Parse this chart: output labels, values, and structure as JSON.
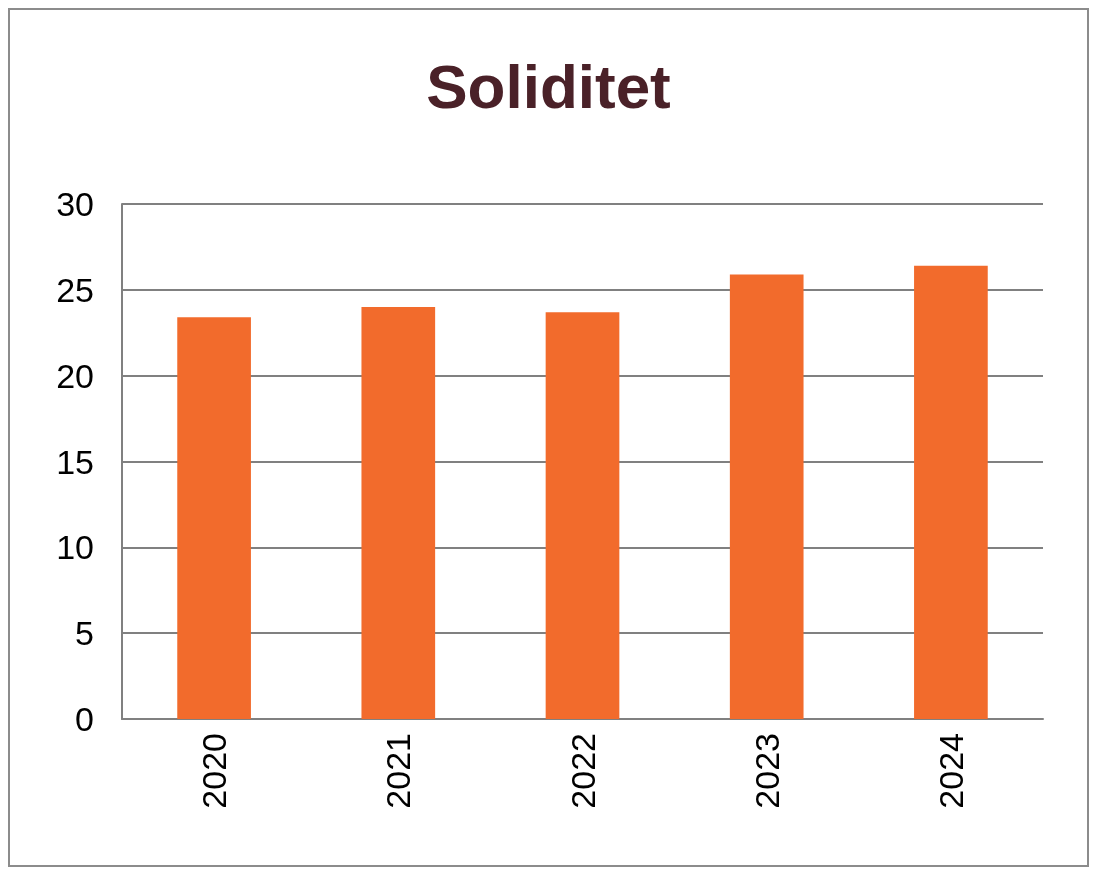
{
  "chart_data": {
    "type": "bar",
    "title": "Soliditet",
    "categories": [
      "2020",
      "2021",
      "2022",
      "2023",
      "2024"
    ],
    "values": [
      23.4,
      24.0,
      23.7,
      25.9,
      26.4
    ],
    "color": "#f26b2c",
    "ylim": [
      0,
      30
    ],
    "yticks": [
      0,
      5,
      10,
      15,
      20,
      25,
      30
    ],
    "grid": "y"
  }
}
